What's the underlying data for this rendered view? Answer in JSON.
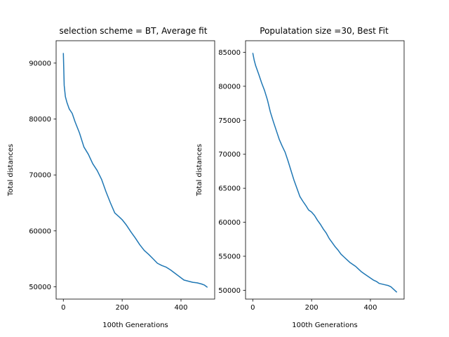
{
  "chart_data": [
    {
      "type": "line",
      "title": "selection scheme = BT, Average fit",
      "xlabel": "100th Generations",
      "ylabel": "Total distances",
      "xlim": [
        -24.5,
        514.5
      ],
      "ylim": [
        47800,
        94000
      ],
      "xticks": [
        0,
        200,
        400
      ],
      "yticks": [
        50000,
        60000,
        70000,
        80000,
        90000
      ],
      "tick_labels_x": [
        "0",
        "200",
        "400"
      ],
      "tick_labels_y": [
        "50000",
        "60000",
        "70000",
        "80000",
        "90000"
      ],
      "grid": false,
      "series": [
        {
          "color": "#1f77b4",
          "x": [
            0,
            3,
            7,
            12,
            20,
            30,
            40,
            55,
            70,
            85,
            100,
            115,
            130,
            145,
            160,
            175,
            190,
            200,
            215,
            230,
            245,
            260,
            275,
            290,
            305,
            320,
            335,
            350,
            365,
            380,
            395,
            410,
            425,
            440,
            455,
            470,
            480,
            490
          ],
          "values": [
            91800,
            86000,
            84000,
            83000,
            81800,
            81000,
            79500,
            77500,
            75000,
            73700,
            72000,
            70800,
            69200,
            67000,
            65000,
            63200,
            62500,
            62000,
            61000,
            59800,
            58700,
            57500,
            56500,
            55800,
            55000,
            54200,
            53800,
            53500,
            53000,
            52400,
            51800,
            51200,
            51000,
            50800,
            50700,
            50500,
            50300,
            49900
          ]
        }
      ]
    },
    {
      "type": "line",
      "title": "Populatation size =30, Best Fit",
      "xlabel": "100th Generations",
      "ylabel": "Total distances",
      "xlim": [
        -24.5,
        514.5
      ],
      "ylim": [
        48700,
        86700
      ],
      "xticks": [
        0,
        200,
        400
      ],
      "yticks": [
        50000,
        55000,
        60000,
        65000,
        70000,
        75000,
        80000,
        85000
      ],
      "tick_labels_x": [
        "0",
        "200",
        "400"
      ],
      "tick_labels_y": [
        "50000",
        "55000",
        "60000",
        "65000",
        "70000",
        "75000",
        "80000",
        "85000"
      ],
      "grid": false,
      "series": [
        {
          "color": "#1f77b4",
          "x": [
            0,
            5,
            10,
            20,
            30,
            40,
            50,
            60,
            70,
            80,
            90,
            100,
            110,
            120,
            130,
            140,
            150,
            160,
            170,
            180,
            190,
            200,
            210,
            220,
            230,
            240,
            250,
            260,
            270,
            280,
            290,
            300,
            310,
            320,
            330,
            340,
            350,
            360,
            370,
            380,
            390,
            400,
            410,
            420,
            430,
            440,
            450,
            460,
            470,
            480,
            490
          ],
          "values": [
            84900,
            83800,
            83000,
            81800,
            80500,
            79400,
            78000,
            76200,
            74800,
            73500,
            72200,
            71200,
            70300,
            69000,
            67600,
            66200,
            65000,
            63800,
            63100,
            62500,
            61800,
            61500,
            61000,
            60300,
            59700,
            59000,
            58400,
            57600,
            57000,
            56400,
            55900,
            55300,
            54900,
            54500,
            54100,
            53800,
            53500,
            53100,
            52700,
            52400,
            52100,
            51800,
            51500,
            51300,
            51000,
            50900,
            50800,
            50700,
            50500,
            50100,
            49700
          ]
        }
      ]
    }
  ]
}
